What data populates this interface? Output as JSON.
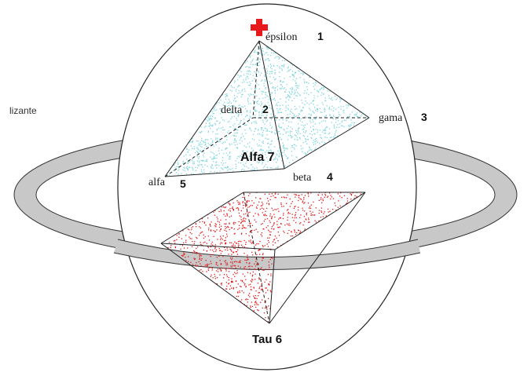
{
  "colors": {
    "ring": "#c8c8c8",
    "top_dots": "#7fd6de",
    "bottom_dots": "#e21b1b",
    "marker": "#e8191a"
  },
  "labels": {
    "partial_left": "lizante",
    "epsilon": "épsilon",
    "epsilon_num": "1",
    "delta": "delta",
    "delta_num": "2",
    "gama": "gama",
    "gama_num": "3",
    "beta": "beta",
    "beta_num": "4",
    "alfa": "alfa",
    "alfa_num": "5",
    "tau": "Tau 6",
    "alfa7": "Alfa 7"
  },
  "icons": {
    "top_marker": "red-cross-icon"
  }
}
